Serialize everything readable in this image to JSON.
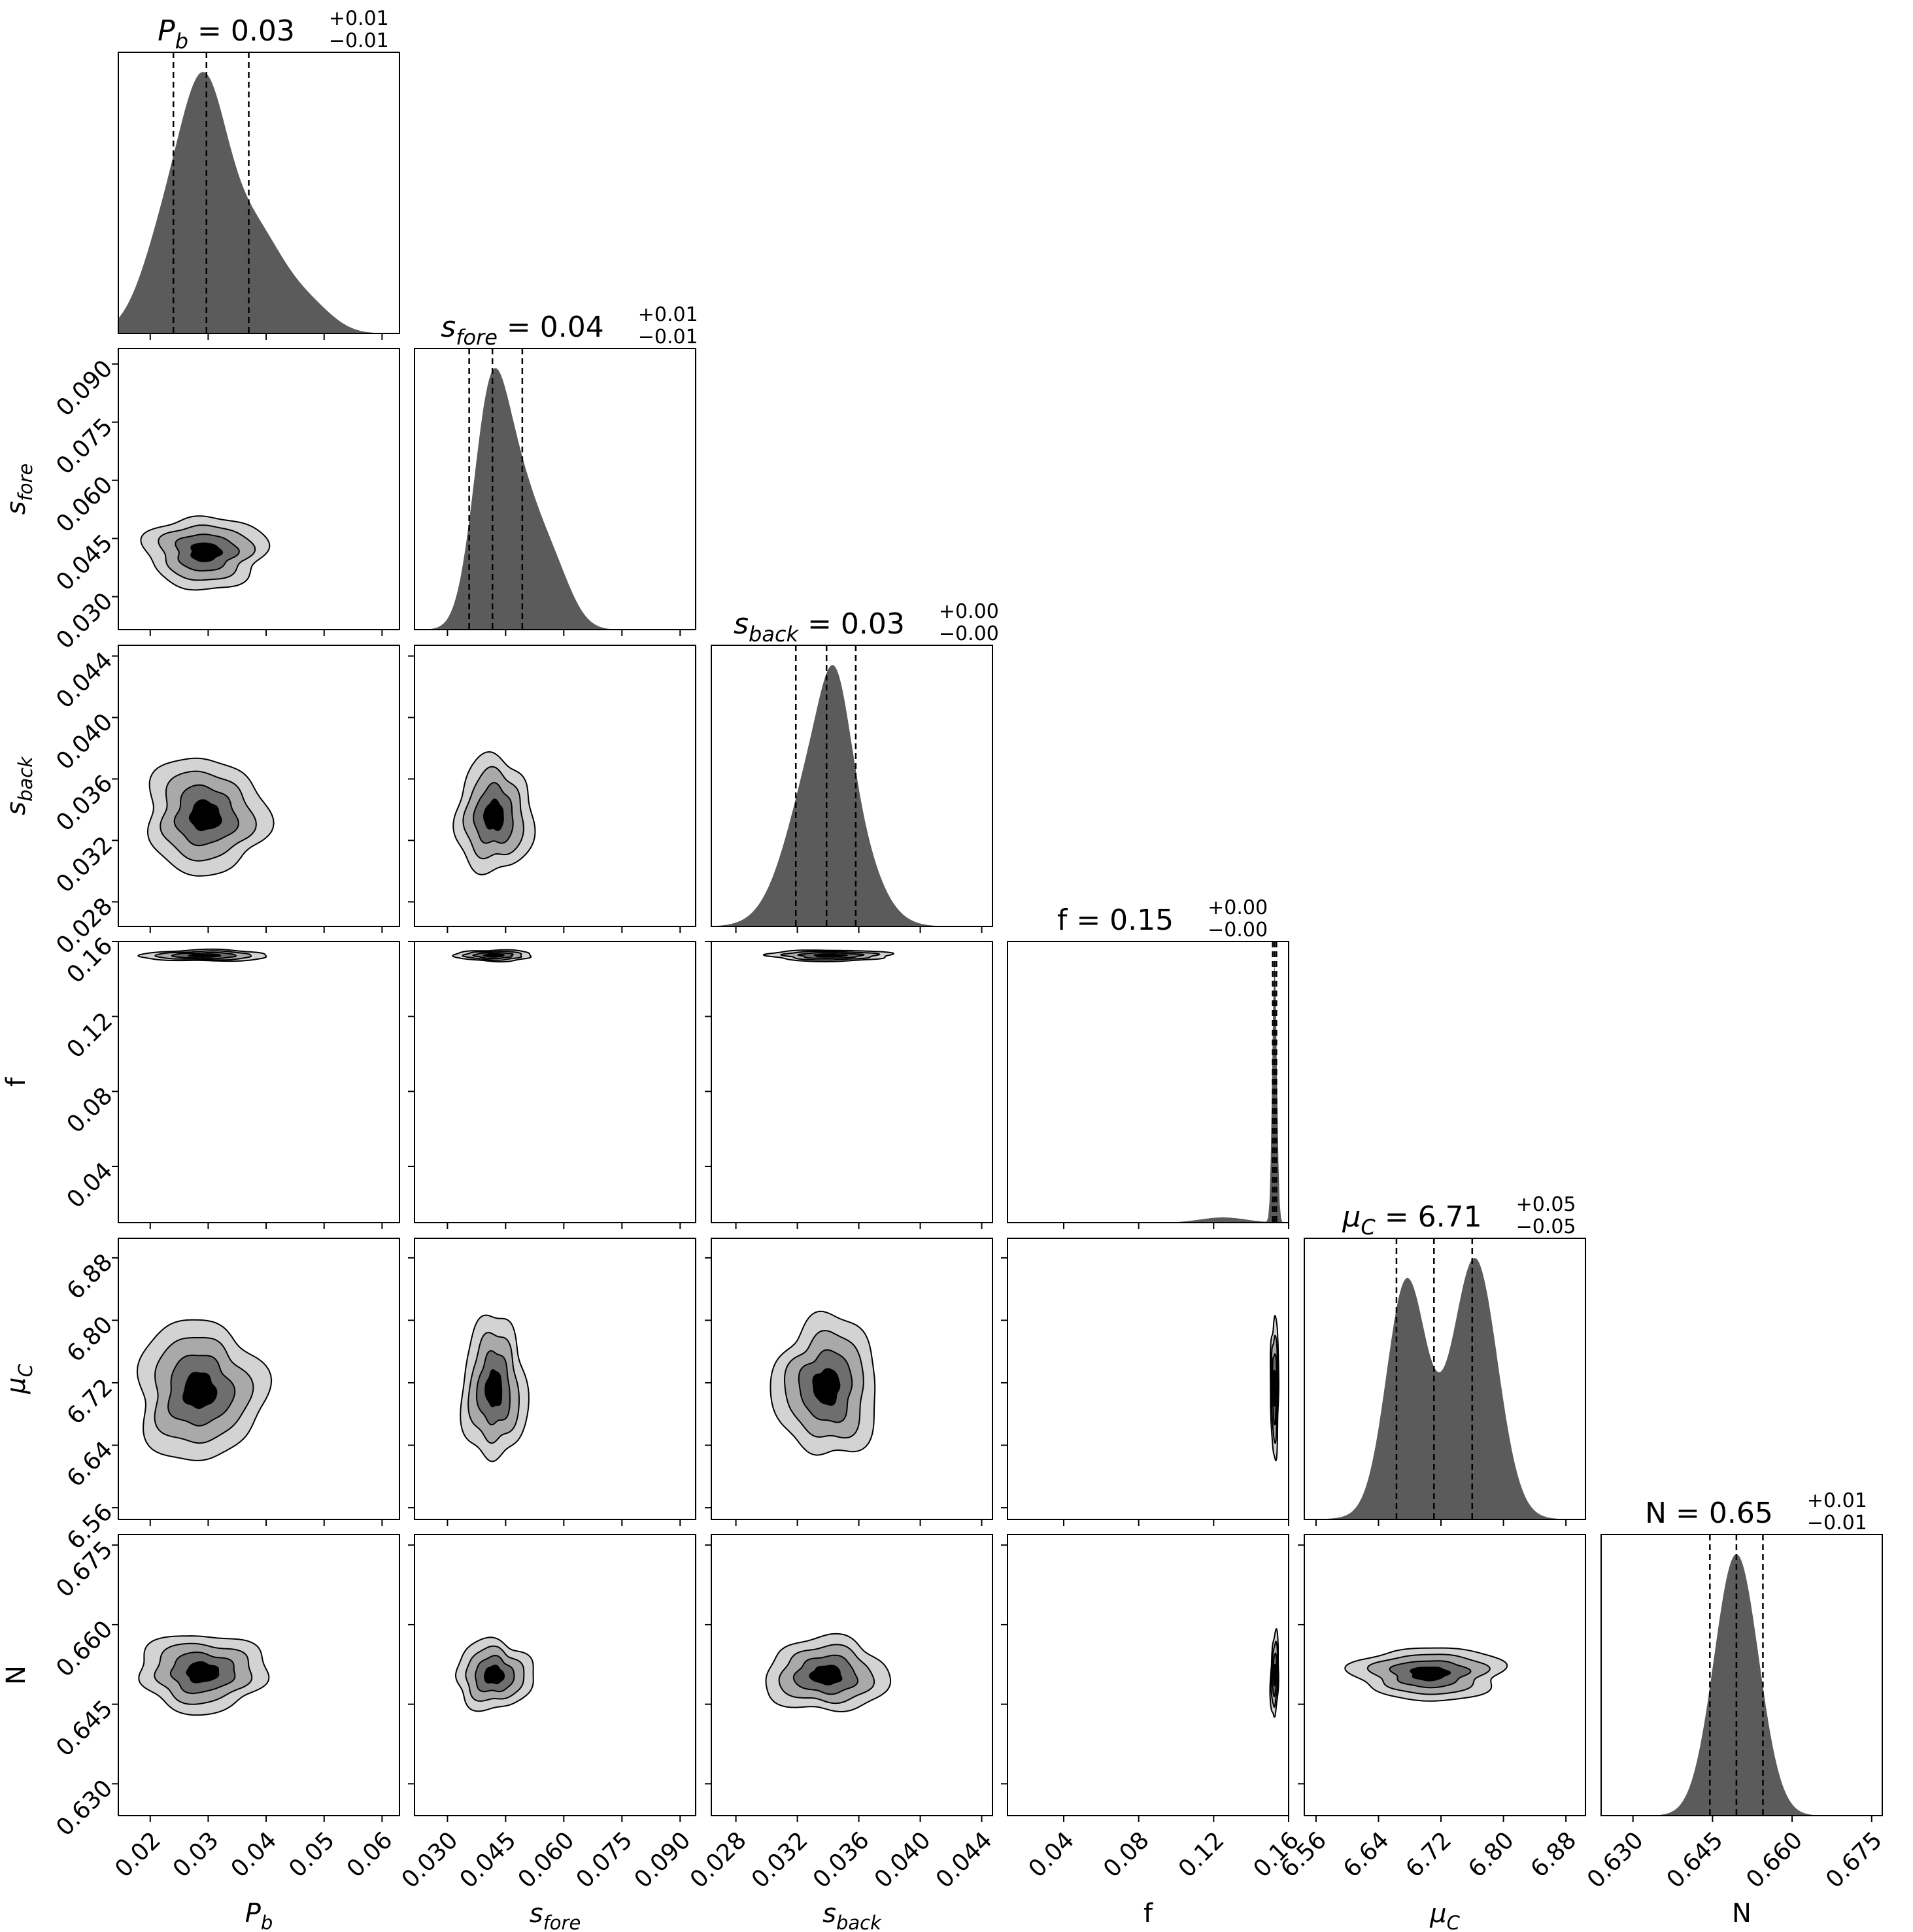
{
  "chart_data": {
    "type": "corner",
    "parameters": [
      {
        "key": "Pb",
        "label": "P_b",
        "label_text": "P",
        "label_sub": "b",
        "title_value": "0.03",
        "title_plus": "+0.01",
        "title_minus": "−0.01",
        "range": [
          0.0145,
          0.063
        ],
        "ticks": [
          0.02,
          0.03,
          0.04,
          0.05,
          0.06
        ],
        "tick_labels": [
          "0.02",
          "0.03",
          "0.04",
          "0.05",
          "0.06"
        ],
        "quantiles": [
          0.024,
          0.0297,
          0.037
        ]
      },
      {
        "key": "sfore",
        "label": "s_fore",
        "label_text": "s",
        "label_sub": "fore",
        "title_value": "0.04",
        "title_plus": "+0.01",
        "title_minus": "−0.01",
        "range": [
          0.0215,
          0.094
        ],
        "ticks": [
          0.03,
          0.045,
          0.06,
          0.075,
          0.09
        ],
        "tick_labels": [
          "0.030",
          "0.045",
          "0.060",
          "0.075",
          "0.090"
        ],
        "quantiles": [
          0.0356,
          0.0416,
          0.0493
        ]
      },
      {
        "key": "sback",
        "label": "s_back",
        "label_text": "s",
        "label_sub": "back",
        "title_value": "0.03",
        "title_plus": "+0.00",
        "title_minus": "−0.00",
        "range": [
          0.0264,
          0.0447
        ],
        "ticks": [
          0.028,
          0.032,
          0.036,
          0.04,
          0.044
        ],
        "tick_labels": [
          "0.028",
          "0.032",
          "0.036",
          "0.040",
          "0.044"
        ],
        "quantiles": [
          0.0319,
          0.0339,
          0.0358
        ]
      },
      {
        "key": "f",
        "label": "f",
        "label_text": "f",
        "label_sub": "",
        "title_value": "0.15",
        "title_plus": "+0.00",
        "title_minus": "−0.00",
        "range": [
          0.01,
          0.16
        ],
        "ticks": [
          0.04,
          0.08,
          0.12,
          0.16
        ],
        "tick_labels": [
          "0.04",
          "0.08",
          "0.12",
          "0.16"
        ],
        "quantiles": [
          0.1515,
          0.1525,
          0.1535
        ]
      },
      {
        "key": "muC",
        "label": "μ_C",
        "label_text": "μ",
        "label_sub": "C",
        "title_value": "6.71",
        "title_plus": "+0.05",
        "title_minus": "−0.05",
        "range": [
          6.545,
          6.905
        ],
        "ticks": [
          6.56,
          6.64,
          6.72,
          6.8,
          6.88
        ],
        "tick_labels": [
          "6.56",
          "6.64",
          "6.72",
          "6.80",
          "6.88"
        ],
        "quantiles": [
          6.663,
          6.711,
          6.76
        ]
      },
      {
        "key": "N",
        "label": "N",
        "label_text": "N",
        "label_sub": "",
        "title_value": "0.65",
        "title_plus": "+0.01",
        "title_minus": "−0.01",
        "range": [
          0.624,
          0.677
        ],
        "ticks": [
          0.63,
          0.645,
          0.66,
          0.675
        ],
        "tick_labels": [
          "0.630",
          "0.645",
          "0.660",
          "0.675"
        ],
        "quantiles": [
          0.6445,
          0.6495,
          0.6545
        ]
      }
    ],
    "marginals": [
      {
        "param": "Pb",
        "components": [
          [
            0.45,
            0.0295,
            0.0038
          ],
          [
            0.28,
            0.0235,
            0.0045
          ],
          [
            0.27,
            0.0375,
            0.0055
          ],
          [
            0.05,
            0.048,
            0.004
          ]
        ]
      },
      {
        "param": "sfore",
        "components": [
          [
            0.55,
            0.041,
            0.0045
          ],
          [
            0.3,
            0.0485,
            0.005
          ],
          [
            0.15,
            0.057,
            0.005
          ]
        ]
      },
      {
        "param": "sback",
        "components": [
          [
            0.75,
            0.0339,
            0.0021
          ],
          [
            0.25,
            0.0345,
            0.0009
          ]
        ]
      },
      {
        "param": "f",
        "components": [
          [
            1.0,
            0.1525,
            0.0012
          ],
          [
            0.02,
            0.125,
            0.012
          ]
        ]
      },
      {
        "param": "muC",
        "components": [
          [
            0.5,
            6.675,
            0.025
          ],
          [
            0.55,
            6.765,
            0.028
          ],
          [
            0.1,
            6.72,
            0.05
          ]
        ]
      },
      {
        "param": "N",
        "components": [
          [
            1.0,
            0.6495,
            0.0042
          ]
        ]
      }
    ],
    "contour_levels_sigma": [
      0.5,
      1.0,
      1.5,
      2.0
    ],
    "pairs": [
      {
        "x": "Pb",
        "y": "sfore",
        "mean": [
          0.0295,
          0.0415
        ],
        "sd": [
          0.0052,
          0.0047
        ],
        "rho": 0.0
      },
      {
        "x": "Pb",
        "y": "sback",
        "mean": [
          0.0295,
          0.0336
        ],
        "sd": [
          0.0052,
          0.0019
        ],
        "rho": -0.05
      },
      {
        "x": "sfore",
        "y": "sback",
        "mean": [
          0.042,
          0.0336
        ],
        "sd": [
          0.005,
          0.0019
        ],
        "rho": 0.0
      },
      {
        "x": "Pb",
        "y": "f",
        "mean": [
          0.0295,
          0.1525
        ],
        "sd": [
          0.0055,
          0.0015
        ],
        "rho": 0.0
      },
      {
        "x": "sfore",
        "y": "f",
        "mean": [
          0.042,
          0.1525
        ],
        "sd": [
          0.005,
          0.0015
        ],
        "rho": 0.0
      },
      {
        "x": "sback",
        "y": "f",
        "mean": [
          0.0341,
          0.1525
        ],
        "sd": [
          0.002,
          0.0015
        ],
        "rho": 0.0
      },
      {
        "x": "Pb",
        "y": "muC",
        "mean": [
          0.0285,
          6.71
        ],
        "sd": [
          0.0055,
          0.045
        ],
        "rho": 0.0
      },
      {
        "x": "sfore",
        "y": "muC",
        "mean": [
          0.042,
          6.712
        ],
        "sd": [
          0.0042,
          0.046
        ],
        "rho": 0.0
      },
      {
        "x": "sback",
        "y": "muC",
        "mean": [
          0.0339,
          6.715
        ],
        "sd": [
          0.0017,
          0.045
        ],
        "rho": 0.0
      },
      {
        "x": "f",
        "y": "muC",
        "mean": [
          0.1525,
          6.715
        ],
        "sd": [
          0.0011,
          0.045
        ],
        "rho": 0.0
      },
      {
        "x": "Pb",
        "y": "N",
        "mean": [
          0.029,
          0.651
        ],
        "sd": [
          0.0055,
          0.0037
        ],
        "rho": 0.0
      },
      {
        "x": "sfore",
        "y": "N",
        "mean": [
          0.042,
          0.6505
        ],
        "sd": [
          0.005,
          0.0033
        ],
        "rho": 0.0
      },
      {
        "x": "sback",
        "y": "N",
        "mean": [
          0.0339,
          0.6505
        ],
        "sd": [
          0.002,
          0.0035
        ],
        "rho": 0.0
      },
      {
        "x": "f",
        "y": "N",
        "mean": [
          0.1525,
          0.6505
        ],
        "sd": [
          0.0011,
          0.004
        ],
        "rho": 0.3
      },
      {
        "x": "muC",
        "y": "N",
        "mean": [
          6.705,
          0.6508
        ],
        "sd": [
          0.048,
          0.0025
        ],
        "rho": 0.0
      }
    ],
    "colors": {
      "marginal_fill": "#5b5b5b",
      "contour_fills": [
        "#d3d3d3",
        "#a9a9a9",
        "#6e6e6e",
        "#000000"
      ],
      "line": "#000000",
      "background": "#ffffff"
    },
    "grid": false,
    "legend": "none"
  }
}
